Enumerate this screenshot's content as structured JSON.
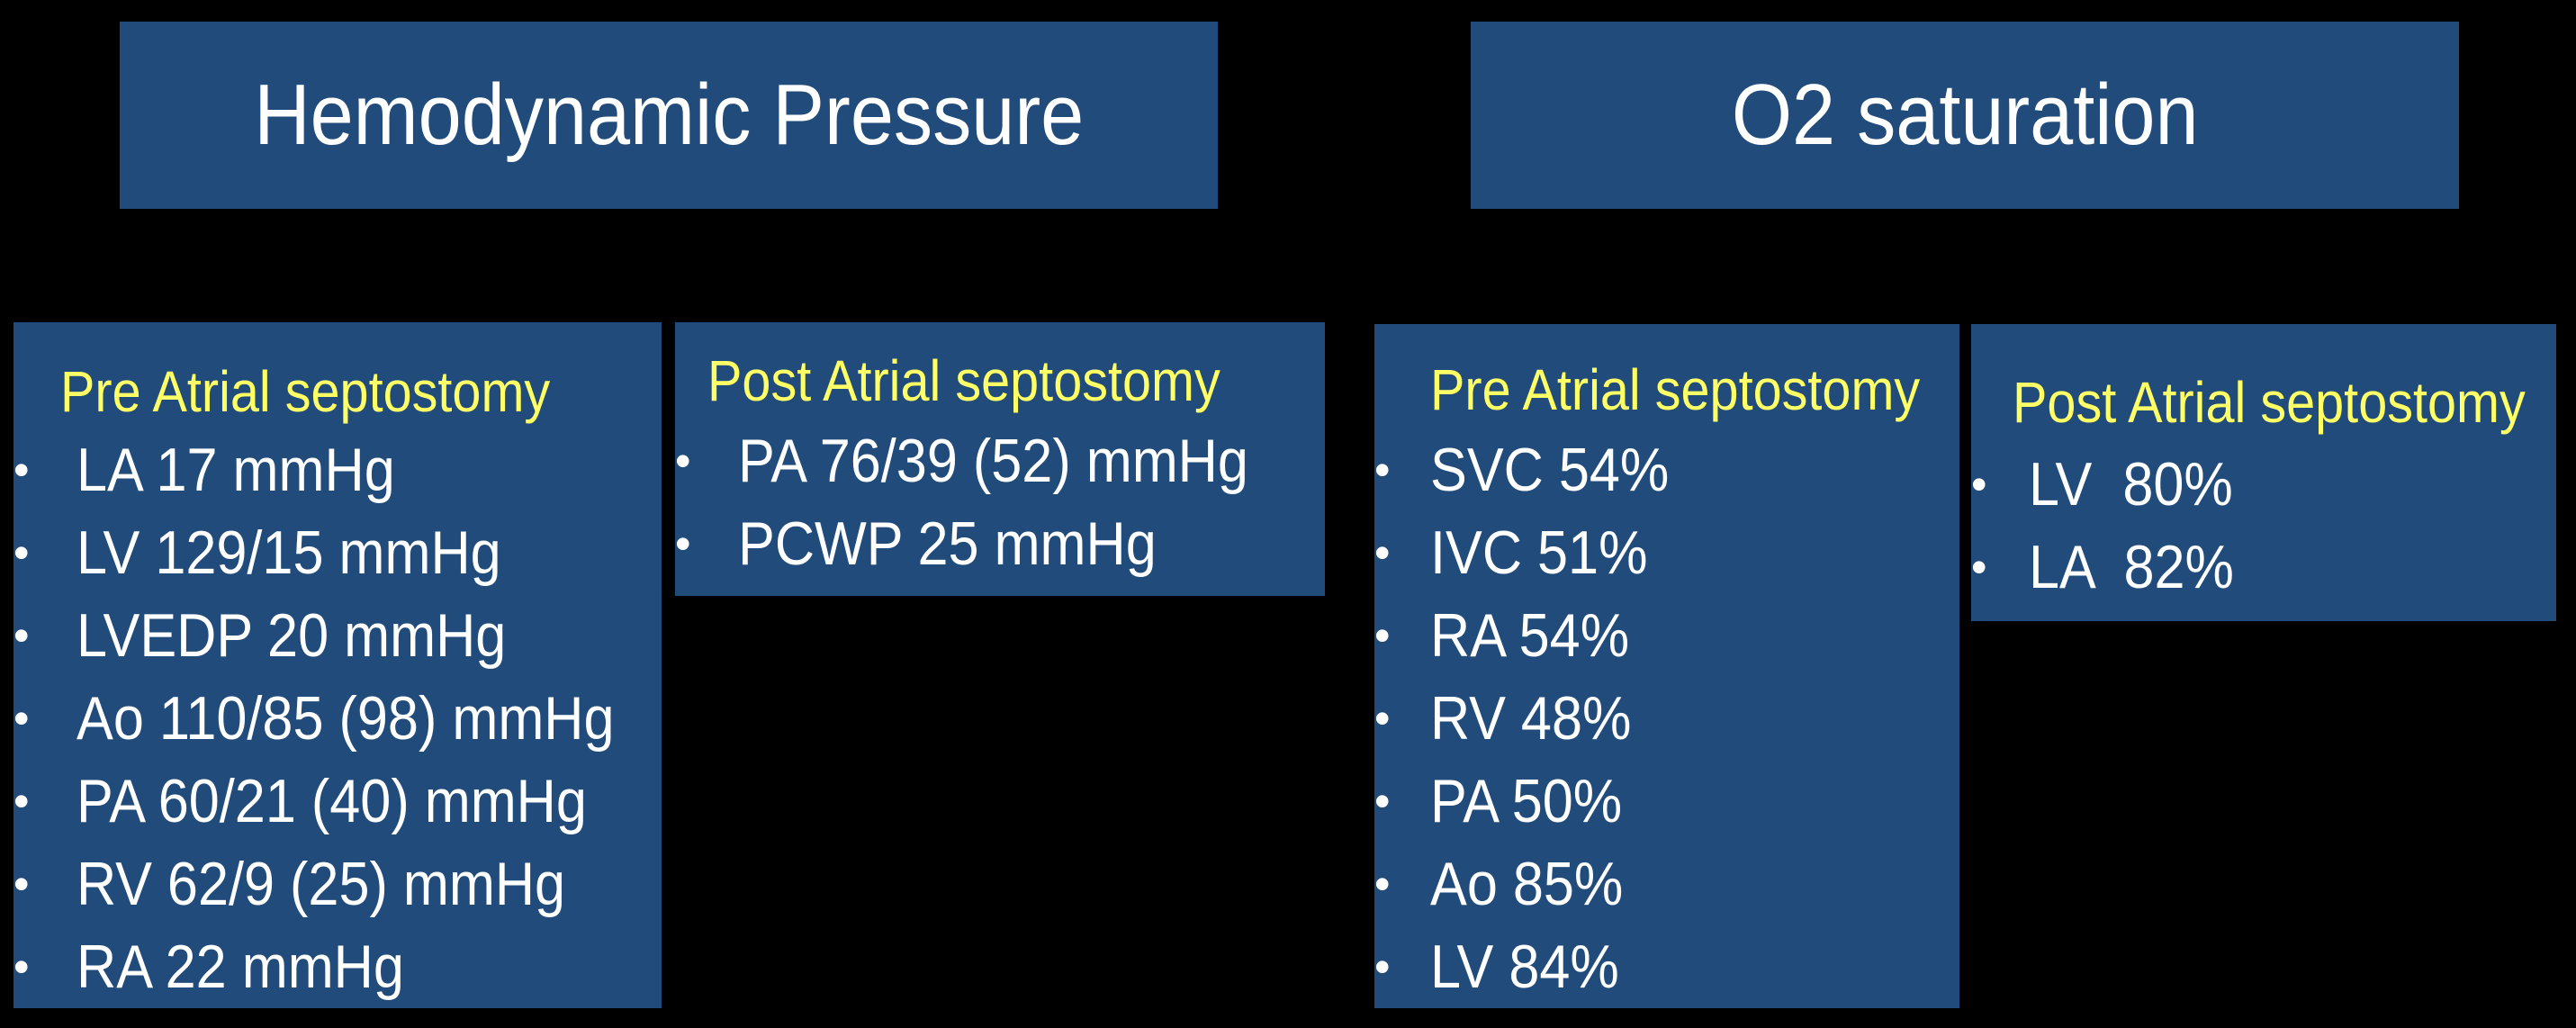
{
  "colors": {
    "background": "#000000",
    "panel": "#214b7a",
    "title_text": "#ffffff",
    "subtitle_text": "#ffff66",
    "item_text": "#ffffff"
  },
  "headers": {
    "left": "Hemodynamic Pressure",
    "right": "O2 saturation"
  },
  "panels": {
    "pressure_pre": {
      "title": "Pre Atrial septostomy",
      "items": [
        "LA 17 mmHg",
        "LV 129/15 mmHg",
        "LVEDP 20 mmHg",
        "Ao 110/85 (98) mmHg",
        "PA 60/21 (40) mmHg",
        "RV 62/9 (25) mmHg",
        "RA 22 mmHg"
      ]
    },
    "pressure_post": {
      "title": "Post Atrial septostomy",
      "items": [
        "PA 76/39 (52) mmHg",
        "PCWP 25 mmHg"
      ]
    },
    "o2_pre": {
      "title": "Pre Atrial septostomy",
      "items": [
        "SVC 54%",
        "IVC 51%",
        "RA 54%",
        "RV 48%",
        "PA 50%",
        "Ao 85%",
        "LV 84%"
      ]
    },
    "o2_post": {
      "title": "Post Atrial septostomy",
      "items": [
        "LV  80%",
        "LA  82%"
      ]
    }
  },
  "bullet": "•"
}
